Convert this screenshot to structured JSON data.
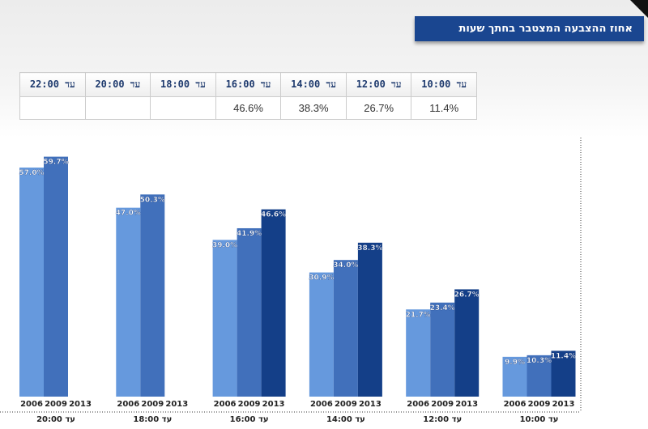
{
  "header": {
    "title": "אחוז ההצבעה המצטבר בחתך שעות"
  },
  "table": {
    "headers": [
      "עד 10:00",
      "עד 12:00",
      "עד 14:00",
      "עד 16:00",
      "עד 18:00",
      "עד 20:00",
      "עד 22:00"
    ],
    "values": [
      "11.4%",
      "26.7%",
      "38.3%",
      "46.6%",
      "",
      "",
      ""
    ]
  },
  "chart_data": {
    "type": "bar",
    "title": "אחוז ההצבעה המצטבר בחתך שעות",
    "categories": [
      "עד 20:00",
      "עד 18:00",
      "עד 16:00",
      "עד 14:00",
      "עד 12:00",
      "עד 10:00"
    ],
    "series_labels": [
      "2006",
      "2009",
      "2013"
    ],
    "series": [
      {
        "name": "2006",
        "color": "#6699dd",
        "values": [
          57.0,
          47.0,
          39.0,
          30.9,
          21.7,
          9.9
        ]
      },
      {
        "name": "2009",
        "color": "#4170bb",
        "values": [
          59.7,
          50.3,
          41.9,
          34.0,
          23.4,
          10.3
        ]
      },
      {
        "name": "2013",
        "color": "#143f88",
        "values": [
          null,
          null,
          46.6,
          38.3,
          26.7,
          11.4
        ]
      }
    ],
    "ylim": [
      0,
      60
    ],
    "grid": false
  }
}
